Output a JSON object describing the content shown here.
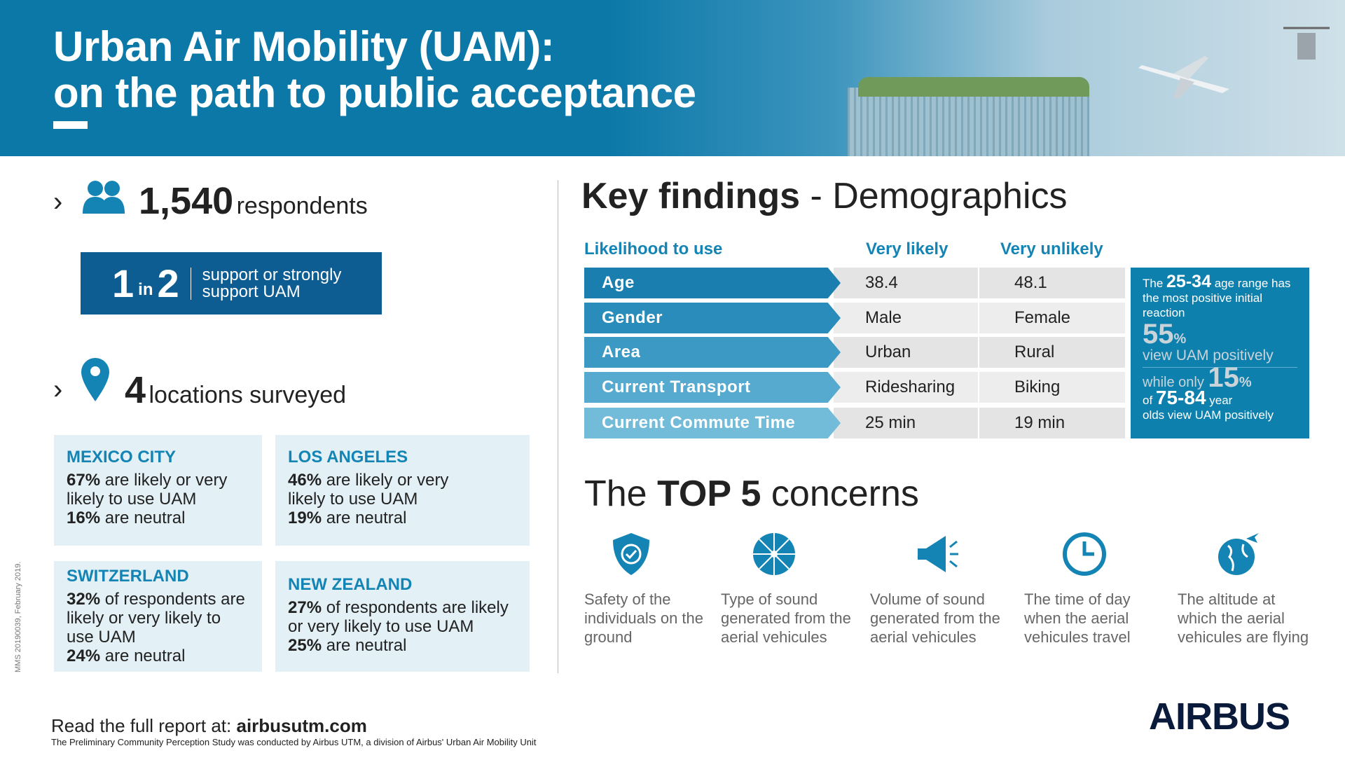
{
  "header": {
    "title_line1": "Urban Air Mobility (UAM):",
    "title_line2": "on the path to public acceptance"
  },
  "colors": {
    "primary_blue": "#0b78a8",
    "dark_blue": "#0d5d92",
    "light_box": "#e3f1f6",
    "accent_text": "#1484b5"
  },
  "respondents": {
    "count": "1,540",
    "label": "respondents",
    "icon": "people-icon"
  },
  "ratio": {
    "one": "1",
    "in": "in",
    "two": "2",
    "text_line1": "support or strongly",
    "text_line2": "support UAM"
  },
  "locations": {
    "count": "4",
    "label": "locations surveyed",
    "icon": "map-pin-icon"
  },
  "cities": [
    {
      "name": "MEXICO CITY",
      "pct1": "67%",
      "text1": " are likely or very likely to use UAM",
      "pct2": "16%",
      "text2": " are neutral"
    },
    {
      "name": "LOS ANGELES",
      "pct1": "46%",
      "text1": " are likely or very likely to use UAM",
      "pct2": "19%",
      "text2": " are neutral"
    },
    {
      "name": "SWITZERLAND",
      "pct1": "32%",
      "text1": " of respondents are likely or very likely to use UAM",
      "pct2": "24%",
      "text2": " are neutral"
    },
    {
      "name": "NEW ZEALAND",
      "pct1": "27%",
      "text1": " of respondents are likely or very likely to use UAM",
      "pct2": "25%",
      "text2": " are neutral"
    }
  ],
  "key_findings": {
    "title_bold": "Key findings",
    "title_rest": " - Demographics",
    "columns": [
      "Likelihood to use",
      "Very likely",
      "Very unlikely"
    ],
    "rows": [
      {
        "label": "Age",
        "very_likely": "38.4",
        "very_unlikely": "48.1",
        "color": "#1a7fae"
      },
      {
        "label": "Gender",
        "very_likely": "Male",
        "very_unlikely": "Female",
        "color": "#2a8cba"
      },
      {
        "label": "Area",
        "very_likely": "Urban",
        "very_unlikely": "Rural",
        "color": "#3b99c4"
      },
      {
        "label": "Current Transport",
        "very_likely": "Ridesharing",
        "very_unlikely": "Biking",
        "color": "#56aacf"
      },
      {
        "label": "Current Commute Time",
        "very_likely": "25 min",
        "very_unlikely": "19 min",
        "color": "#72bbd9"
      }
    ],
    "stat": {
      "the": "The ",
      "age1": "25-34",
      "age_text": " age range has the most positive initial reaction",
      "pct1": "55",
      "pct_sign": "%",
      "view1": "view UAM positively",
      "while": "while only ",
      "pct2": "15",
      "of": "of ",
      "age2": "75-84",
      "year": " year",
      "view2": "olds view UAM positively"
    }
  },
  "concerns": {
    "title_pre": "The ",
    "title_bold": "TOP 5",
    "title_post": " concerns",
    "items": [
      {
        "icon": "shield-check-icon",
        "text": "Safety of the individuals on the ground"
      },
      {
        "icon": "sound-wave-icon",
        "text": "Type of sound generated from the aerial vehicules"
      },
      {
        "icon": "megaphone-icon",
        "text": "Volume of sound generated from the aerial vehicules"
      },
      {
        "icon": "clock-icon",
        "text": "The time of day when the aerial vehicules travel"
      },
      {
        "icon": "globe-plane-icon",
        "text": "The altitude at which the aerial vehicules are flying"
      }
    ]
  },
  "footer": {
    "read_prefix": "Read the full report at: ",
    "link": "airbusutm.com",
    "note": "The Preliminary Community Perception Study was conducted by Airbus UTM, a division of Airbus' Urban Air Mobility Unit",
    "side_note": "MMS 20190039, February 2019."
  },
  "logo": "AIRBUS"
}
